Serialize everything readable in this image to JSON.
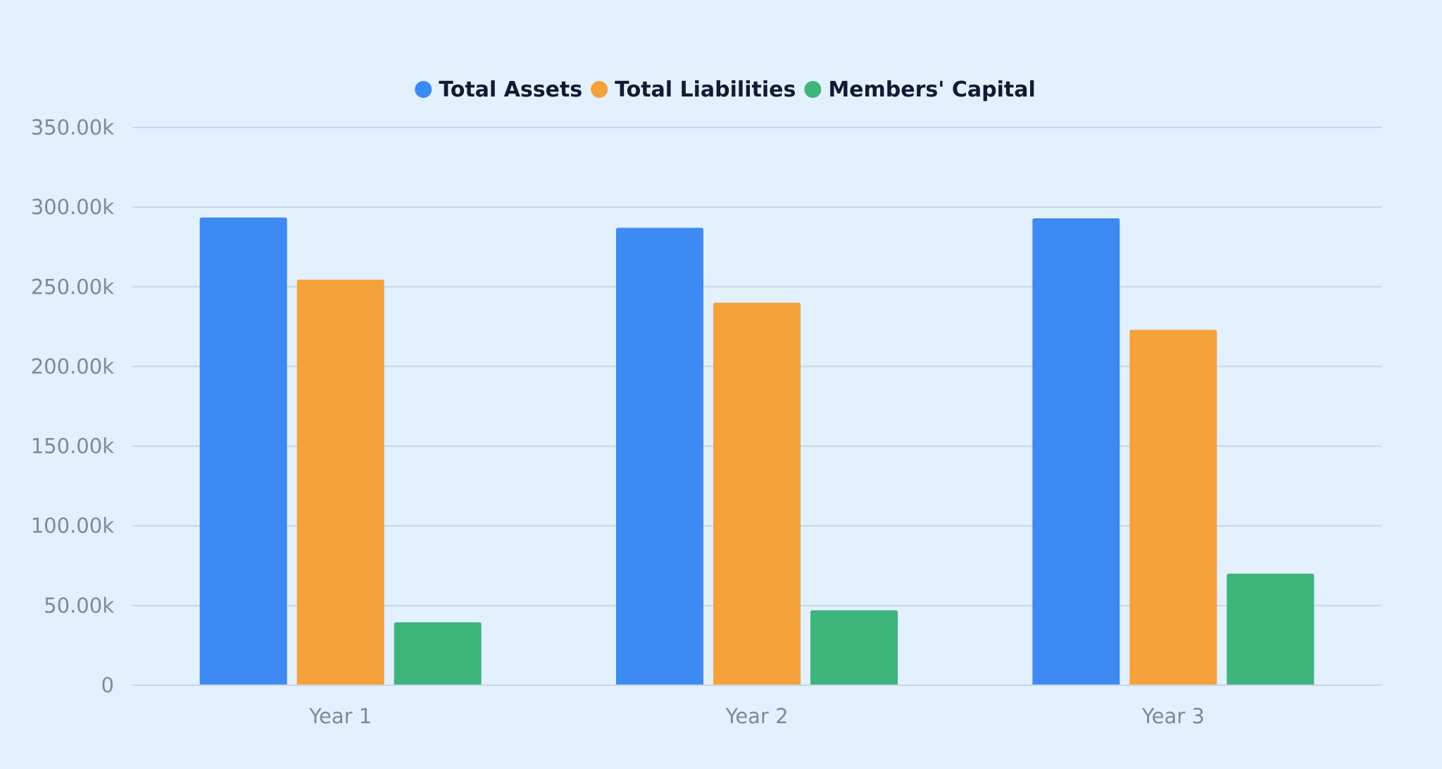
{
  "colors": {
    "background": "#e3f0fe",
    "grid": "#c7d6e8",
    "tick_text": "#7f8a99",
    "legend_text": "#121a33"
  },
  "chart_data": {
    "type": "bar",
    "categories": [
      "Year 1",
      "Year 2",
      "Year 3"
    ],
    "series": [
      {
        "name": "Total Assets",
        "color": "#3d8af2",
        "values": [
          293500,
          287000,
          293000
        ]
      },
      {
        "name": "Total Liabilities",
        "color": "#f5a23c",
        "values": [
          254500,
          240000,
          223000
        ]
      },
      {
        "name": "Members' Capital",
        "color": "#3db57b",
        "values": [
          39500,
          47000,
          70000
        ]
      }
    ],
    "y_ticks": [
      {
        "value": 0,
        "label": "0"
      },
      {
        "value": 50000,
        "label": "50.00k"
      },
      {
        "value": 100000,
        "label": "100.00k"
      },
      {
        "value": 150000,
        "label": "150.00k"
      },
      {
        "value": 200000,
        "label": "200.00k"
      },
      {
        "value": 250000,
        "label": "250.00k"
      },
      {
        "value": 300000,
        "label": "300.00k"
      },
      {
        "value": 350000,
        "label": "350.00k"
      }
    ],
    "ylim": [
      0,
      350000
    ],
    "grid": true,
    "legend_position": "top-center"
  }
}
